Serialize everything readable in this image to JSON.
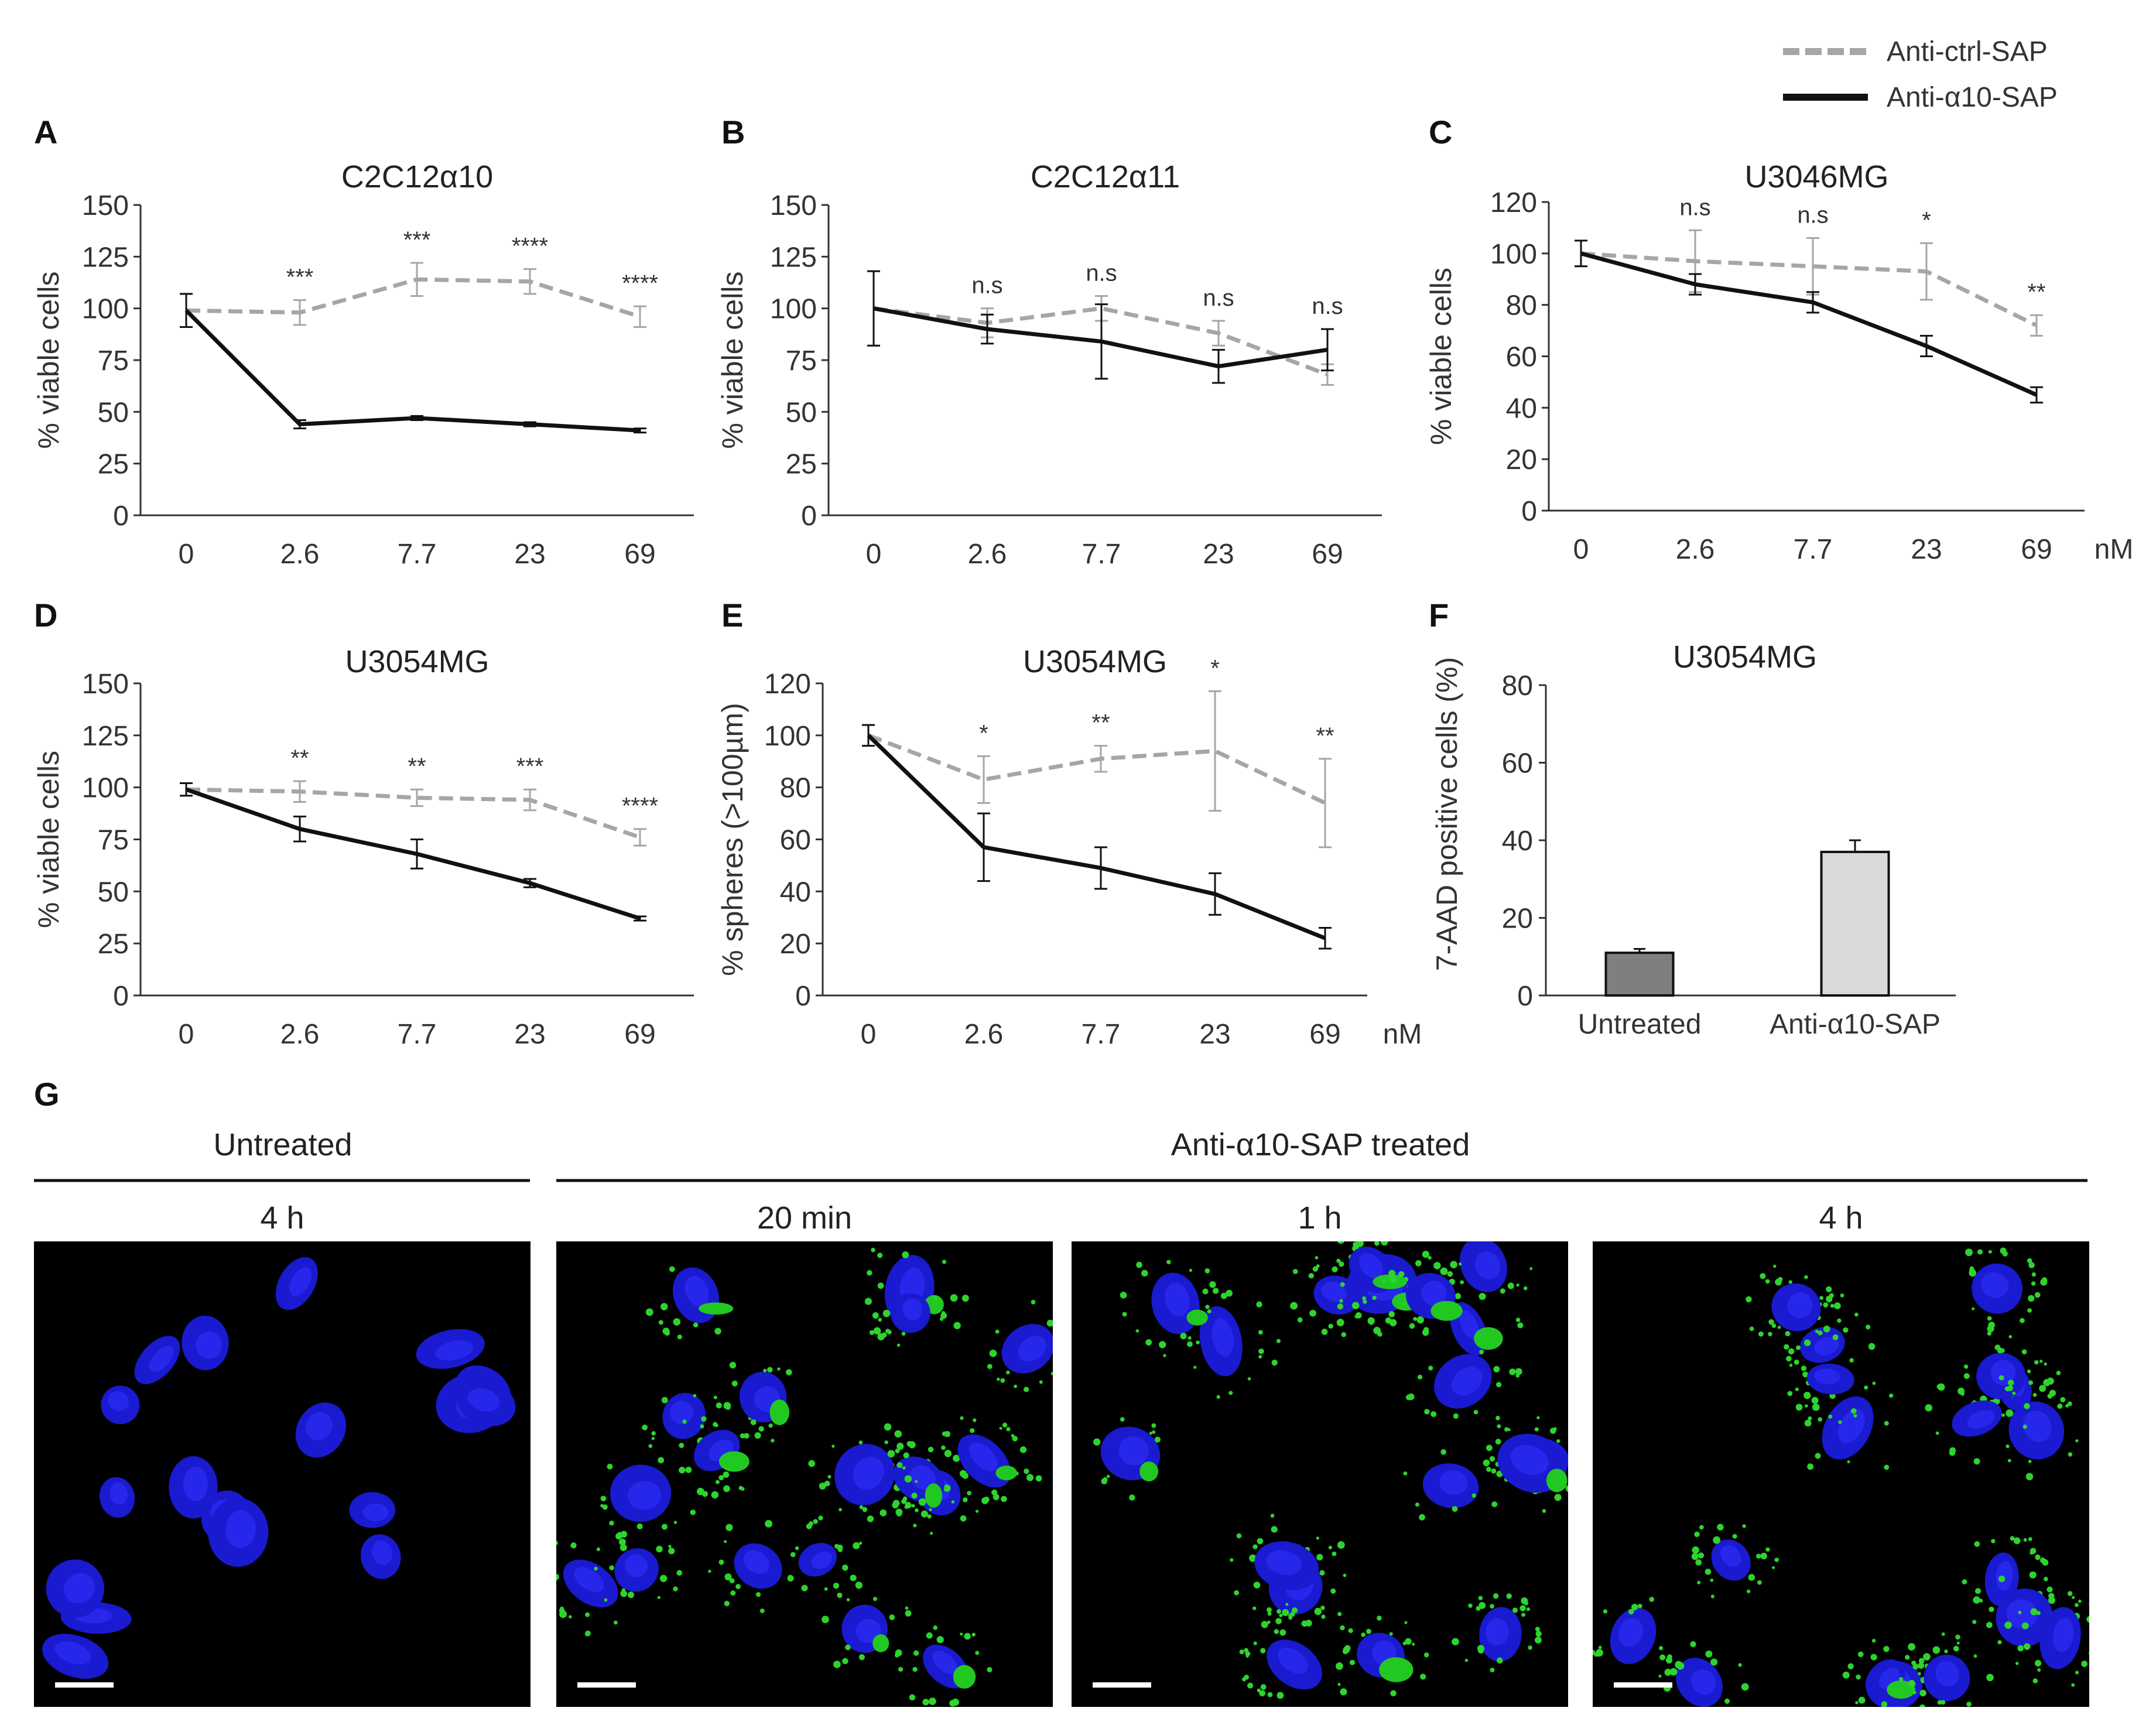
{
  "legend": {
    "items": [
      {
        "name": "Anti-ctrl-SAP",
        "style": "dashed",
        "color": "#a6a6a6"
      },
      {
        "name": "Anti-α10-SAP",
        "style": "solid",
        "color": "#111111"
      }
    ]
  },
  "chart_data": [
    {
      "panel": "A",
      "type": "line",
      "title": "C2C12α10",
      "ylabel": "% viable cells",
      "xlabel": "",
      "x": [
        "0",
        "2.6",
        "7.7",
        "23",
        "69"
      ],
      "yticks": [
        0,
        25,
        50,
        75,
        100,
        125,
        150
      ],
      "ylim": [
        0,
        150
      ],
      "series": [
        {
          "name": "Anti-ctrl-SAP",
          "values": [
            99,
            98,
            114,
            113,
            96
          ],
          "err": [
            8,
            6,
            8,
            6,
            5
          ]
        },
        {
          "name": "Anti-α10-SAP",
          "values": [
            99,
            44,
            47,
            44,
            41
          ],
          "err": [
            8,
            2,
            1,
            1,
            1
          ]
        }
      ],
      "annotations": [
        "",
        "***",
        "***",
        "****",
        "****"
      ]
    },
    {
      "panel": "B",
      "type": "line",
      "title": "C2C12α11",
      "ylabel": "% viable cells",
      "xlabel": "",
      "x": [
        "0",
        "2.6",
        "7.7",
        "23",
        "69"
      ],
      "yticks": [
        0,
        25,
        50,
        75,
        100,
        125,
        150
      ],
      "ylim": [
        0,
        150
      ],
      "series": [
        {
          "name": "Anti-ctrl-SAP",
          "values": [
            100,
            93,
            100,
            88,
            68
          ],
          "err": [
            18,
            7,
            6,
            6,
            5
          ]
        },
        {
          "name": "Anti-α10-SAP",
          "values": [
            100,
            90,
            84,
            72,
            80
          ],
          "err": [
            18,
            7,
            18,
            8,
            10
          ]
        }
      ],
      "annotations": [
        "",
        "n.s",
        "n.s",
        "n.s",
        "n.s"
      ]
    },
    {
      "panel": "C",
      "type": "line",
      "title": "U3046MG",
      "ylabel": "% viable cells",
      "xlabel": "nM",
      "x": [
        "0",
        "2.6",
        "7.7",
        "23",
        "69"
      ],
      "yticks": [
        0,
        20,
        40,
        60,
        80,
        100,
        120
      ],
      "ylim": [
        0,
        120
      ],
      "series": [
        {
          "name": "Anti-ctrl-SAP",
          "values": [
            100,
            97,
            95,
            93,
            72
          ],
          "err": [
            5,
            12,
            11,
            11,
            4
          ]
        },
        {
          "name": "Anti-α10-SAP",
          "values": [
            100,
            88,
            81,
            64,
            45
          ],
          "err": [
            5,
            4,
            4,
            4,
            3
          ]
        }
      ],
      "annotations": [
        "",
        "n.s",
        "n.s",
        "*",
        "**"
      ]
    },
    {
      "panel": "D",
      "type": "line",
      "title": "U3054MG",
      "ylabel": "% viable cells",
      "xlabel": "",
      "x": [
        "0",
        "2.6",
        "7.7",
        "23",
        "69"
      ],
      "yticks": [
        0,
        25,
        50,
        75,
        100,
        125,
        150
      ],
      "ylim": [
        0,
        150
      ],
      "series": [
        {
          "name": "Anti-ctrl-SAP",
          "values": [
            99,
            98,
            95,
            94,
            76
          ],
          "err": [
            3,
            5,
            4,
            5,
            4
          ]
        },
        {
          "name": "Anti-α10-SAP",
          "values": [
            99,
            80,
            68,
            54,
            37
          ],
          "err": [
            3,
            6,
            7,
            2,
            1
          ]
        }
      ],
      "annotations": [
        "",
        "**",
        "**",
        "***",
        "****"
      ]
    },
    {
      "panel": "E",
      "type": "line",
      "title": "U3054MG",
      "ylabel": "% spheres (>100µm)",
      "xlabel": "nM",
      "x": [
        "0",
        "2.6",
        "7.7",
        "23",
        "69"
      ],
      "yticks": [
        0,
        20,
        40,
        60,
        80,
        100,
        120
      ],
      "ylim": [
        0,
        120
      ],
      "series": [
        {
          "name": "Anti-ctrl-SAP",
          "values": [
            100,
            83,
            91,
            94,
            74
          ],
          "err": [
            4,
            9,
            5,
            23,
            17
          ]
        },
        {
          "name": "Anti-α10-SAP",
          "values": [
            100,
            57,
            49,
            39,
            22
          ],
          "err": [
            4,
            13,
            8,
            8,
            4
          ]
        }
      ],
      "annotations": [
        "",
        "*",
        "**",
        "*",
        "**"
      ]
    },
    {
      "panel": "F",
      "type": "bar",
      "title": "U3054MG",
      "ylabel": "7-AAD positive cells (%)",
      "xlabel": "",
      "categories": [
        "Untreated",
        "Anti-α10-SAP"
      ],
      "values": [
        11,
        37
      ],
      "err": [
        1,
        3
      ],
      "colors": [
        "#7f7f7f",
        "#d9d9d9"
      ],
      "yticks": [
        0,
        20,
        40,
        60,
        80
      ],
      "ylim": [
        0,
        80
      ]
    }
  ],
  "panel_g": {
    "letter": "G",
    "groups": [
      {
        "label": "Untreated"
      },
      {
        "label": "Anti-α10-SAP treated"
      }
    ],
    "images": [
      {
        "label": "4 h",
        "green": "none"
      },
      {
        "label": "20 min",
        "green": "high"
      },
      {
        "label": "1 h",
        "green": "high"
      },
      {
        "label": "4 h",
        "green": "high"
      }
    ]
  }
}
